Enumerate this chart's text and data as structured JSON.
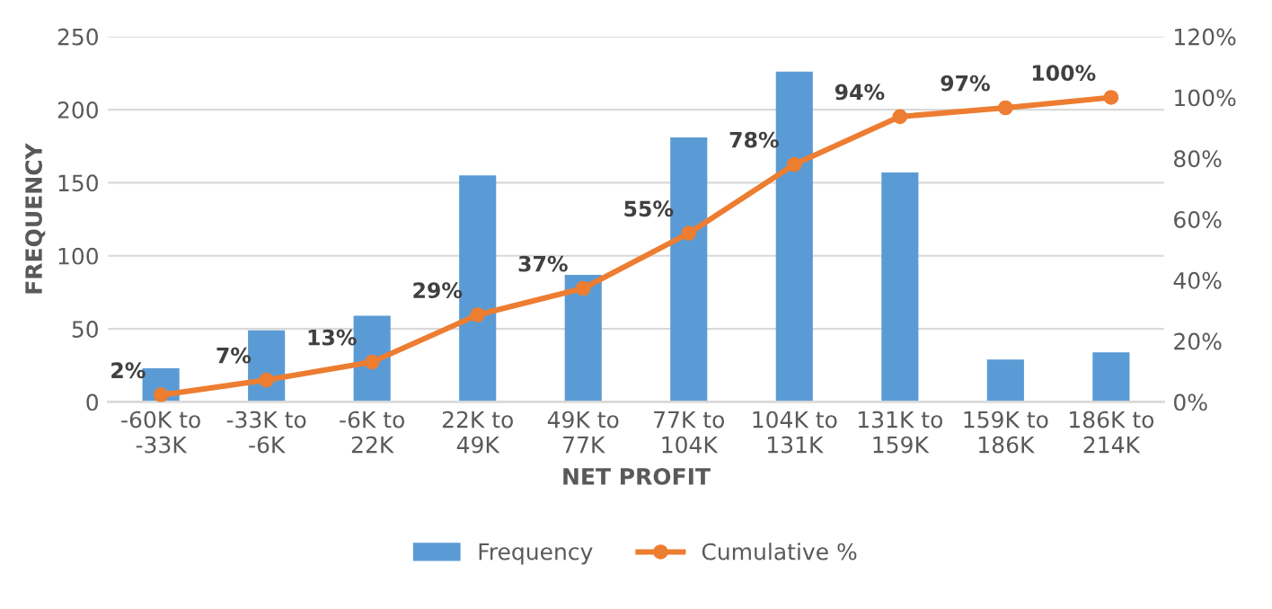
{
  "chart_data": {
    "type": "bar",
    "xlabel": "NET PROFIT",
    "ylabel": "FREQUENCY",
    "categories": [
      "-60K to -33K",
      "-33K to -6K",
      "-6K to 22K",
      "22K to 49K",
      "49K to 77K",
      "77K to 104K",
      "104K to 131K",
      "131K to 159K",
      "159K to 186K",
      "186K to 214K"
    ],
    "series": [
      {
        "name": "Frequency",
        "color": "#5b9bd5",
        "values": [
          23,
          49,
          59,
          155,
          87,
          181,
          226,
          157,
          29,
          34
        ]
      },
      {
        "name": "Cumulative %",
        "type": "line",
        "axis": "y2",
        "color": "#ed7d31",
        "marker": "circle",
        "values": [
          2.3,
          7.2,
          13.1,
          28.6,
          37.3,
          55.4,
          78,
          93.7,
          96.6,
          100
        ],
        "value_labels": [
          "2%",
          "7%",
          "13%",
          "29%",
          "37%",
          "55%",
          "78%",
          "94%",
          "97%",
          "100%"
        ]
      }
    ],
    "ylim": [
      0,
      250
    ],
    "yticks": [
      0,
      50,
      100,
      150,
      200,
      250
    ],
    "y2lim": [
      0,
      120
    ],
    "y2ticks": [
      {
        "value": 0,
        "label": "0%"
      },
      {
        "value": 20,
        "label": "20%"
      },
      {
        "value": 40,
        "label": "40%"
      },
      {
        "value": 60,
        "label": "60%"
      },
      {
        "value": 80,
        "label": "80%"
      },
      {
        "value": 100,
        "label": "100%"
      },
      {
        "value": 120,
        "label": "120%"
      }
    ],
    "grid": "y",
    "legend": "bottom"
  }
}
